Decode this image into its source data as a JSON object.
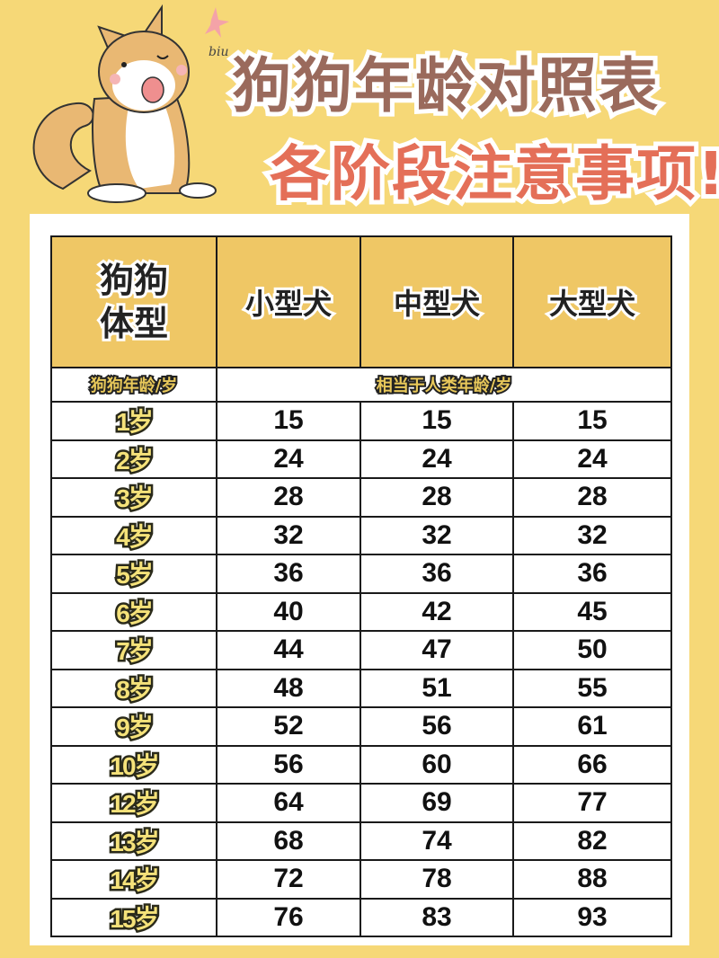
{
  "header": {
    "title": "狗狗年龄对照表",
    "subtitle": "各阶段注意事项!",
    "sticker_text": "biu",
    "colors": {
      "background": "#f6d877",
      "title": "#9a6a5c",
      "subtitle": "#e46f58",
      "header_cell": "#efc765"
    }
  },
  "table": {
    "corner_label_line1": "狗狗",
    "corner_label_line2": "体型",
    "columns": [
      "小型犬",
      "中型犬",
      "大型犬"
    ],
    "age_header": "狗狗年龄/岁",
    "human_age_header": "相当于人类年龄/岁",
    "rows": [
      {
        "age": "1岁",
        "small": "15",
        "medium": "15",
        "large": "15"
      },
      {
        "age": "2岁",
        "small": "24",
        "medium": "24",
        "large": "24"
      },
      {
        "age": "3岁",
        "small": "28",
        "medium": "28",
        "large": "28"
      },
      {
        "age": "4岁",
        "small": "32",
        "medium": "32",
        "large": "32"
      },
      {
        "age": "5岁",
        "small": "36",
        "medium": "36",
        "large": "36"
      },
      {
        "age": "6岁",
        "small": "40",
        "medium": "42",
        "large": "45"
      },
      {
        "age": "7岁",
        "small": "44",
        "medium": "47",
        "large": "50"
      },
      {
        "age": "8岁",
        "small": "48",
        "medium": "51",
        "large": "55"
      },
      {
        "age": "9岁",
        "small": "52",
        "medium": "56",
        "large": "61"
      },
      {
        "age": "10岁",
        "small": "56",
        "medium": "60",
        "large": "66"
      },
      {
        "age": "12岁",
        "small": "64",
        "medium": "69",
        "large": "77"
      },
      {
        "age": "13岁",
        "small": "68",
        "medium": "74",
        "large": "82"
      },
      {
        "age": "14岁",
        "small": "72",
        "medium": "78",
        "large": "88"
      },
      {
        "age": "15岁",
        "small": "76",
        "medium": "83",
        "large": "93"
      }
    ]
  }
}
